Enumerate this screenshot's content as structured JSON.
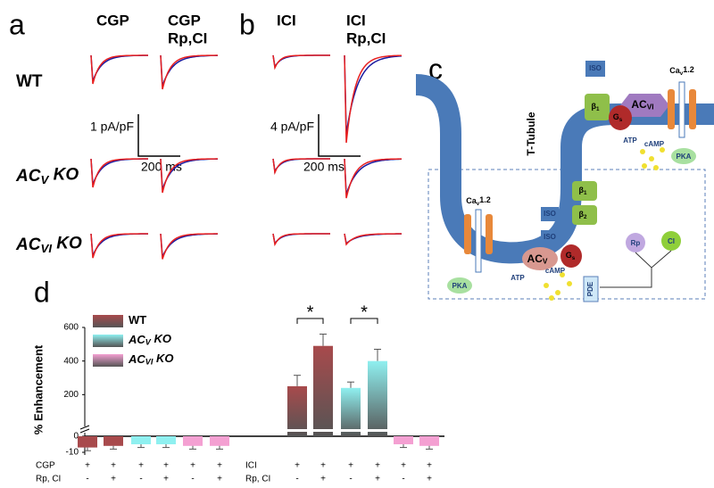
{
  "panel_a": {
    "label": "a",
    "col_titles": [
      [
        "CGP"
      ],
      [
        "CGP",
        "Rp,CI"
      ]
    ],
    "row_labels": [
      {
        "main": "WT"
      },
      {
        "main": "AC",
        "sub": "V",
        "tail": " KO"
      },
      {
        "main": "AC",
        "sub": "VI",
        "tail": " KO"
      }
    ],
    "scale_y": "1 pA/pF",
    "scale_x": "200 ms"
  },
  "panel_b": {
    "label": "b",
    "col_titles": [
      [
        "ICI"
      ],
      [
        "ICI",
        "Rp,CI"
      ]
    ],
    "scale_y": "4 pA/pF",
    "scale_x": "200 ms"
  },
  "panel_c": {
    "label": "c",
    "iso": [
      "ISO",
      "ISO",
      "ISO"
    ],
    "cav_top": {
      "main": "Ca",
      "sub": "v",
      "tail": "1.2"
    },
    "cav_left": {
      "main": "Ca",
      "sub": "v",
      "tail": "1.2"
    },
    "beta_top": {
      "main": "β",
      "sub": "1"
    },
    "beta_mid": {
      "main": "β",
      "sub": "1"
    },
    "beta_low": {
      "main": "β",
      "sub": "2"
    },
    "gs_top": {
      "main": "G",
      "sub": "s"
    },
    "gs_low": {
      "main": "G",
      "sub": "s"
    },
    "ac_vi": {
      "main": "AC",
      "sub": "VI"
    },
    "ac_v": {
      "main": "AC",
      "sub": "V"
    },
    "atp_top": "ATP",
    "camp_top": "cAMP",
    "atp_low": "ATP",
    "camp_low": "cAMP",
    "pka_top": "PKA",
    "pka_low": "PKA",
    "tubule": "T-Tubule",
    "rp": "Rp",
    "ci": "CI",
    "pde": "PDE"
  },
  "chart_data": {
    "type": "bar",
    "panel_label": "d",
    "y_label": "% Enhancement",
    "ylim": [
      -10,
      600
    ],
    "yticks": [
      -10,
      0,
      200,
      400,
      600
    ],
    "series": [
      {
        "name": {
          "main": "WT"
        },
        "color": "#a84a4c",
        "values": [
          -7,
          -6,
          250,
          490
        ],
        "errors": [
          2,
          2,
          65,
          70
        ]
      },
      {
        "name": {
          "main": "AC",
          "sub": "V",
          "tail": " KO"
        },
        "color": "#8ff0f0",
        "values": [
          -5,
          -5,
          240,
          400
        ],
        "errors": [
          2,
          2,
          35,
          70
        ]
      },
      {
        "name": {
          "main": "AC",
          "sub": "VI",
          "tail": " KO"
        },
        "color": "#f4a0d2",
        "values": [
          -6,
          -6,
          -5,
          -6
        ],
        "errors": [
          2,
          2,
          2,
          2
        ]
      }
    ],
    "groups": [
      {
        "drug": "CGP",
        "drug_signs": [
          "+",
          "+",
          "+",
          "+",
          "+",
          "+"
        ],
        "second": "Rp, CI",
        "second_signs": [
          "-",
          "+",
          "-",
          "+",
          "-",
          "+"
        ]
      },
      {
        "drug": "ICI",
        "drug_signs": [
          "+",
          "+",
          "+",
          "+",
          "+",
          "+"
        ],
        "second": "Rp, CI",
        "second_signs": [
          "-",
          "+",
          "-",
          "+",
          "-",
          "+"
        ]
      }
    ],
    "significance": [
      "*",
      "*"
    ]
  }
}
